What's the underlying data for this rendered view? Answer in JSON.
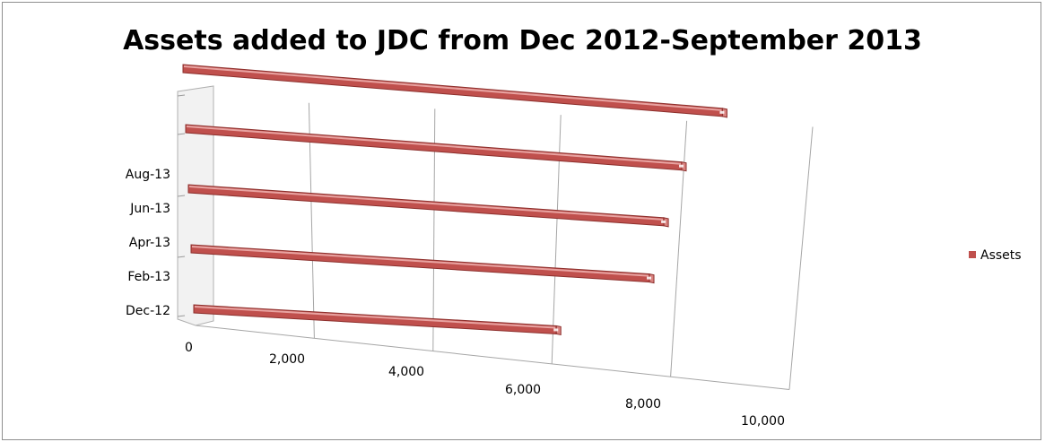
{
  "chart_data": {
    "type": "bar",
    "orientation": "horizontal",
    "title": "Assets added to JDC from Dec 2012-September 2013",
    "categories": [
      "Dec-12",
      "Feb-13",
      "Apr-13",
      "Jun-13",
      "Aug-13"
    ],
    "series": [
      {
        "name": "Assets",
        "values": [
          6200,
          7650,
          7750,
          7900,
          8400
        ],
        "color": "#c0504d"
      }
    ],
    "xlim": [
      0,
      10000
    ],
    "xticks": [
      "0",
      "2,000",
      "4,000",
      "6,000",
      "8,000",
      "10,000"
    ],
    "grid": true,
    "legend_position": "right"
  }
}
